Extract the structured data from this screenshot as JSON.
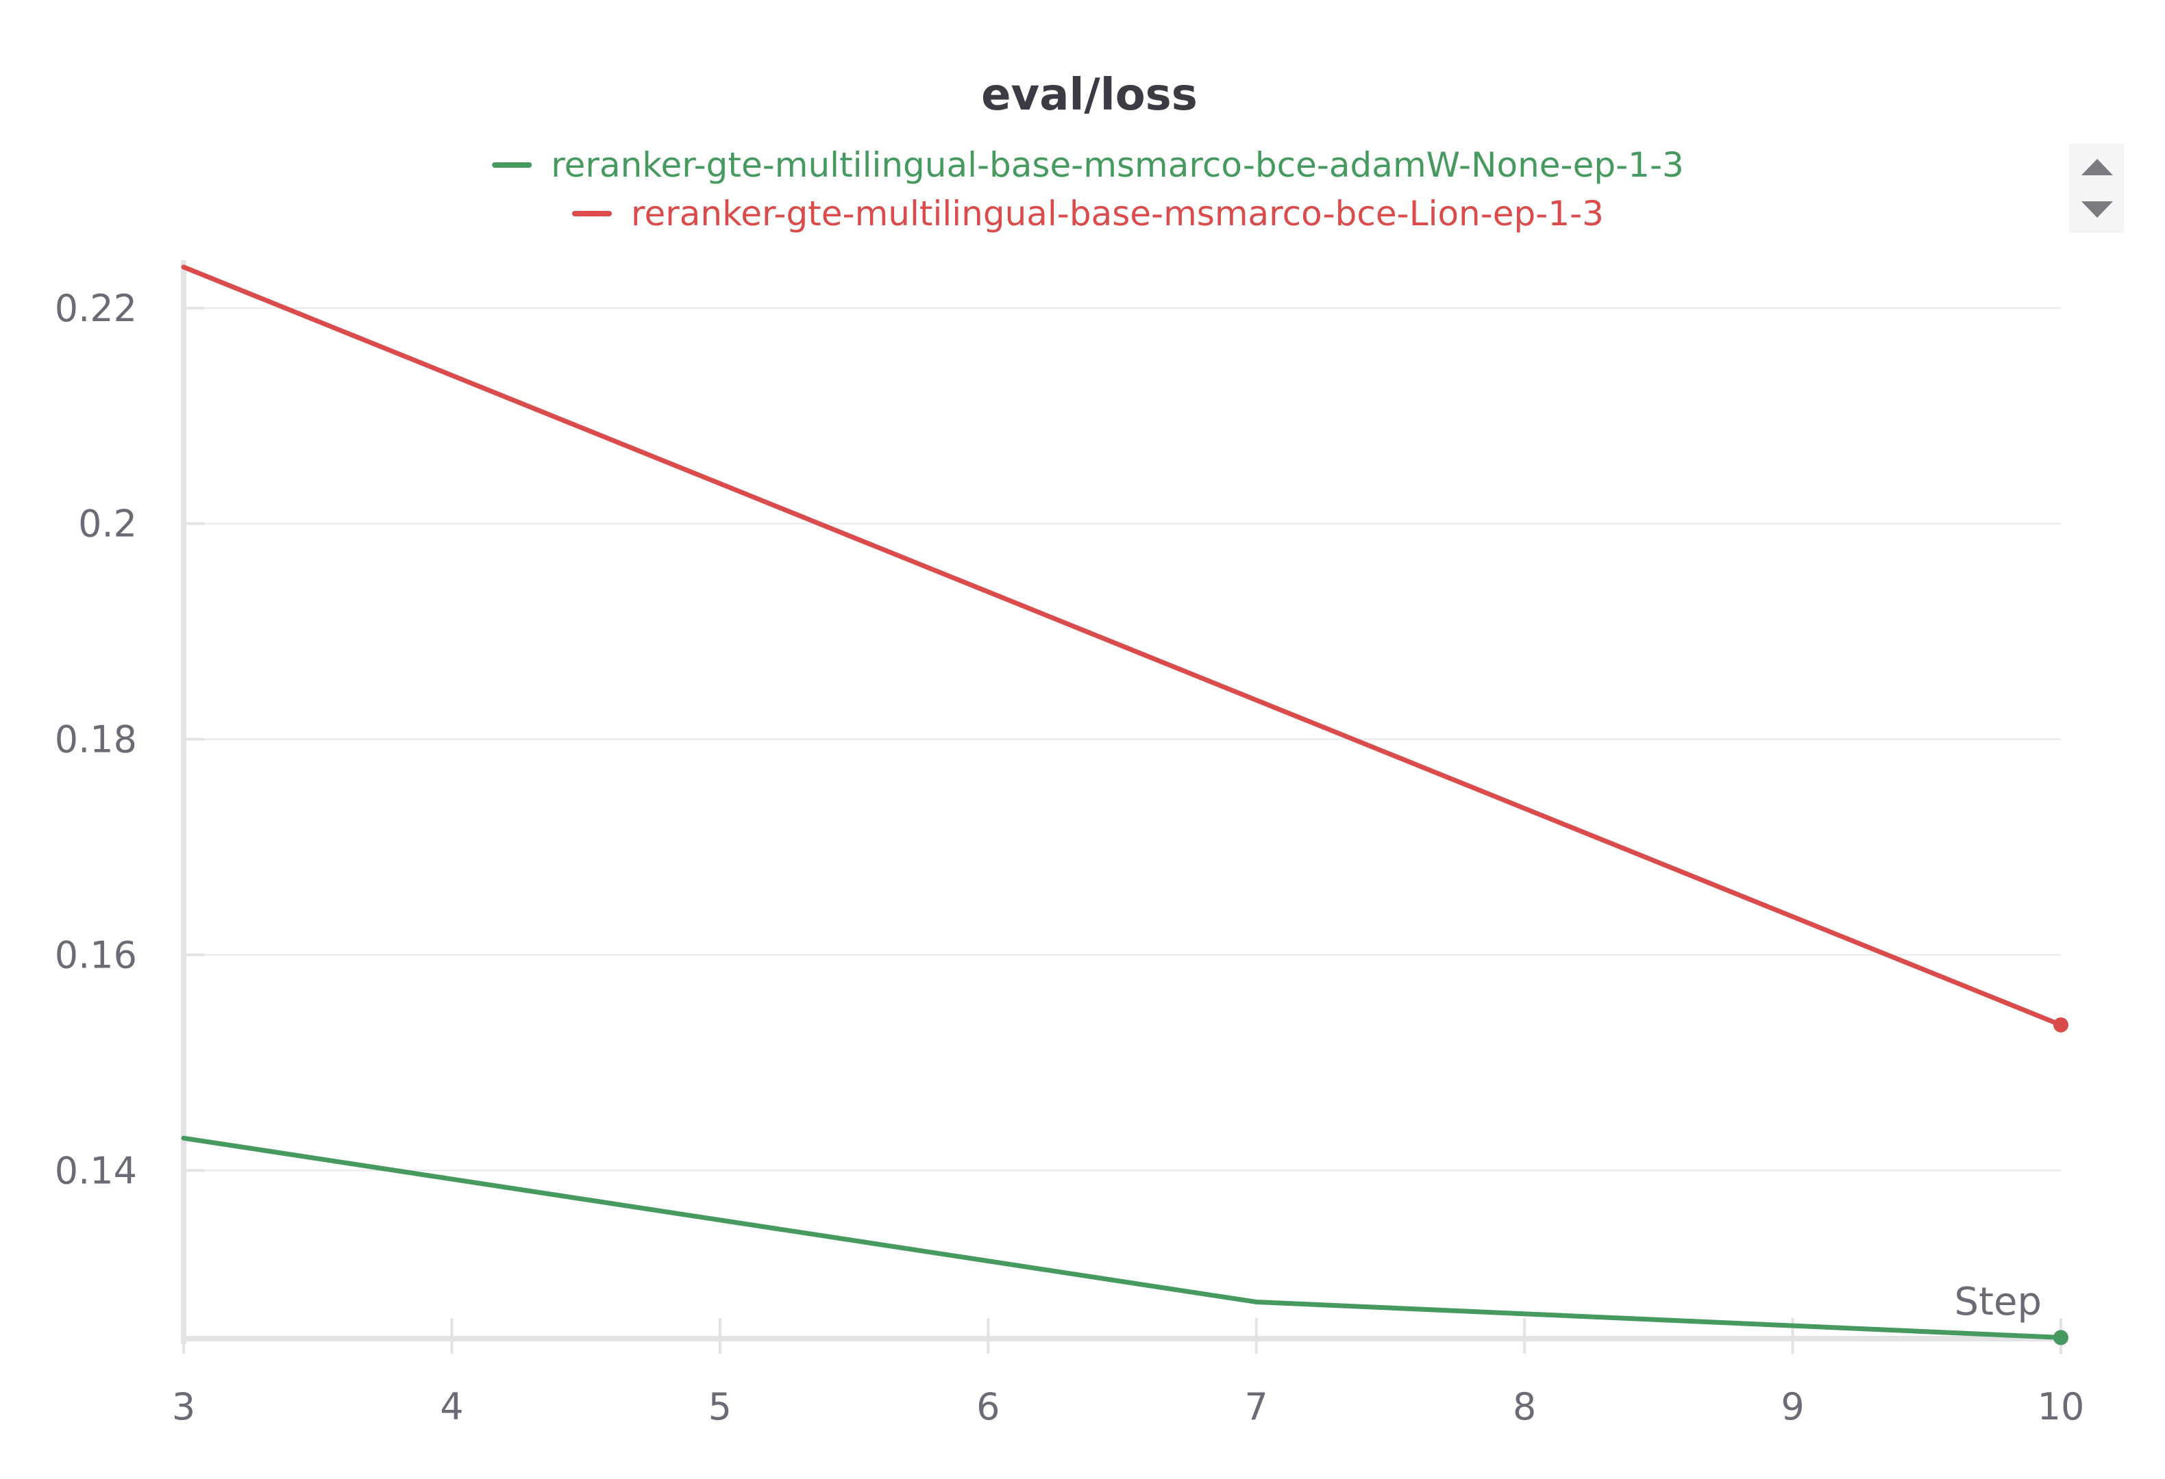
{
  "chart_data": {
    "type": "line",
    "title": "eval/loss",
    "xlabel": "Step",
    "ylabel": "",
    "xlim": [
      3,
      10
    ],
    "ylim": [
      0.1244,
      0.2238
    ],
    "x_ticks": [
      3,
      4,
      5,
      6,
      7,
      8,
      9,
      10
    ],
    "y_ticks": [
      0.14,
      0.16,
      0.18,
      0.2,
      0.22
    ],
    "grid": true,
    "legend_position": "top-center",
    "series": [
      {
        "name": "reranker-gte-multilingual-base-msmarco-bce-adamW-None-ep-1-3",
        "color": "#479a5f",
        "points": [
          [
            3,
            0.143
          ],
          [
            7,
            0.1278
          ],
          [
            10,
            0.1245
          ]
        ],
        "last_point_marker": true
      },
      {
        "name": "reranker-gte-multilingual-base-msmarco-bce-Lion-ep-1-3",
        "color": "#da4c4c",
        "points": [
          [
            3,
            0.2238
          ],
          [
            10,
            0.1535
          ]
        ],
        "last_point_marker": true
      }
    ]
  },
  "legend_controls": {
    "up_icon": "triangle-up-icon",
    "down_icon": "triangle-down-icon"
  }
}
